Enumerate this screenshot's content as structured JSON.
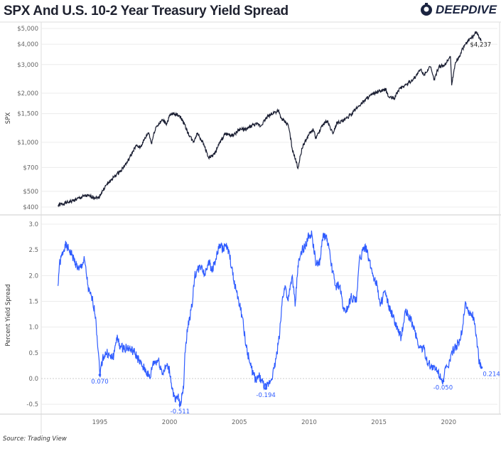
{
  "title": "SPX And U.S. 10-2 Year Treasury Yield Spread",
  "logo": "DEEPDIVE",
  "source": "Source: Trading View",
  "colors": {
    "spx": "#1b1f33",
    "spread": "#2f5cff",
    "grid": "#ececec",
    "axis_text": "#666666"
  },
  "chart_data": [
    {
      "type": "line",
      "ylabel": "SPX",
      "yscale": "log",
      "ylim": [
        380,
        5200
      ],
      "yticks": [
        5000,
        4000,
        3000,
        2000,
        1500,
        1000,
        700,
        500,
        400
      ],
      "ytick_labels": [
        "$5,000",
        "$4,000",
        "$3,000",
        "$2,000",
        "$1,500",
        "$1,000",
        "$700",
        "$500",
        "$400"
      ],
      "grid": true,
      "end_label": "$4,237",
      "x": [
        1992.0,
        1993,
        1994,
        1994.9,
        1995.5,
        1996,
        1996.5,
        1997,
        1997.6,
        1997.9,
        1998.5,
        1998.7,
        1999,
        1999.5,
        1999.8,
        2000.0,
        2000.3,
        2000.7,
        2001.0,
        2001.3,
        2001.7,
        2002.0,
        2002.5,
        2002.8,
        2003.2,
        2003.6,
        2004.0,
        2004.6,
        2005,
        2005.5,
        2006,
        2006.4,
        2006.5,
        2007,
        2007.5,
        2007.8,
        2008.0,
        2008.5,
        2008.8,
        2009.2,
        2009.5,
        2010,
        2010.3,
        2010.5,
        2011,
        2011.3,
        2011.7,
        2012,
        2012.5,
        2013,
        2013.5,
        2014,
        2014.5,
        2015,
        2015.5,
        2015.7,
        2016.1,
        2016.5,
        2017,
        2017.5,
        2018.0,
        2018.2,
        2018.7,
        2018.95,
        2019.3,
        2019.7,
        2020.0,
        2020.13,
        2020.22,
        2020.5,
        2020.8,
        2021.0,
        2021.5,
        2021.8,
        2022.0,
        2022.2,
        2022.35
      ],
      "y": [
        410,
        435,
        470,
        455,
        550,
        610,
        670,
        760,
        950,
        930,
        1150,
        980,
        1230,
        1370,
        1300,
        1450,
        1500,
        1460,
        1330,
        1150,
        1000,
        1140,
        950,
        800,
        840,
        990,
        1130,
        1100,
        1200,
        1200,
        1280,
        1290,
        1250,
        1430,
        1530,
        1550,
        1400,
        1280,
        900,
        690,
        920,
        1120,
        1200,
        1050,
        1290,
        1350,
        1130,
        1320,
        1360,
        1480,
        1650,
        1820,
        1960,
        2050,
        2100,
        1900,
        1860,
        2150,
        2270,
        2450,
        2800,
        2600,
        2900,
        2400,
        2900,
        2980,
        3250,
        3380,
        2240,
        3100,
        3400,
        3750,
        4300,
        4500,
        4790,
        4400,
        4237
      ]
    },
    {
      "type": "line",
      "ylabel": "Percent Yield Spread",
      "ylim": [
        -0.6,
        3.0
      ],
      "yticks": [
        3.0,
        2.5,
        2.0,
        1.5,
        1.0,
        0.5,
        0.0,
        -0.5
      ],
      "ytick_labels": [
        "3.0",
        "2.5",
        "2.0",
        "1.5",
        "1.0",
        "0.5",
        "0.0",
        "-0.5"
      ],
      "xticks": [
        1995,
        2000,
        2005,
        2010,
        2015,
        2020
      ],
      "xtick_labels": [
        "1995",
        "2000",
        "2005",
        "2010",
        "2015",
        "2020"
      ],
      "xlim": [
        1990.8,
        2023.5
      ],
      "grid": true,
      "annotations": [
        {
          "x": 1995.0,
          "y": 0.07,
          "label": "0.070"
        },
        {
          "x": 2000.75,
          "y": -0.511,
          "label": "-0.511"
        },
        {
          "x": 2006.9,
          "y": -0.194,
          "label": "-0.194"
        },
        {
          "x": 2019.6,
          "y": -0.05,
          "label": "-0.050"
        },
        {
          "x": 2022.35,
          "y": 0.214,
          "label": "0.214"
        }
      ],
      "x": [
        1992.0,
        1992.1,
        1992.5,
        1992.8,
        1993,
        1993.5,
        1993.9,
        1994.2,
        1994.5,
        1994.7,
        1994.9,
        1995.0,
        1995.2,
        1995.5,
        1995.8,
        1996.0,
        1996.2,
        1996.5,
        1997.0,
        1997.5,
        1997.8,
        1998.0,
        1998.3,
        1998.6,
        1998.8,
        1999.2,
        1999.5,
        1999.8,
        2000.0,
        2000.2,
        2000.4,
        2000.6,
        2000.75,
        2000.9,
        2001.0,
        2001.1,
        2001.3,
        2001.6,
        2001.8,
        2002.0,
        2002.3,
        2002.5,
        2002.8,
        2003.0,
        2003.3,
        2003.6,
        2003.8,
        2004.0,
        2004.3,
        2004.6,
        2004.9,
        2005.2,
        2005.5,
        2005.8,
        2006.0,
        2006.2,
        2006.4,
        2006.6,
        2006.9,
        2007.1,
        2007.3,
        2007.5,
        2007.7,
        2007.9,
        2008.1,
        2008.3,
        2008.5,
        2008.8,
        2009.0,
        2009.2,
        2009.5,
        2009.8,
        2010.0,
        2010.2,
        2010.5,
        2010.8,
        2011.0,
        2011.3,
        2011.6,
        2011.9,
        2012.2,
        2012.5,
        2012.8,
        2013.0,
        2013.4,
        2013.6,
        2013.9,
        2014.0,
        2014.3,
        2014.6,
        2014.9,
        2015.1,
        2015.4,
        2015.7,
        2016.0,
        2016.4,
        2016.6,
        2016.9,
        2017.2,
        2017.5,
        2017.9,
        2018.2,
        2018.5,
        2018.9,
        2019.2,
        2019.5,
        2019.6,
        2019.8,
        2020.0,
        2020.2,
        2020.5,
        2020.8,
        2021.0,
        2021.2,
        2021.4,
        2021.8,
        2022.0,
        2022.2,
        2022.35
      ],
      "y": [
        1.8,
        2.2,
        2.6,
        2.5,
        2.4,
        2.1,
        2.3,
        1.7,
        1.5,
        1.2,
        0.5,
        0.07,
        0.4,
        0.5,
        0.4,
        0.45,
        0.8,
        0.6,
        0.6,
        0.5,
        0.35,
        0.25,
        0.15,
        0.0,
        0.3,
        0.35,
        0.1,
        0.25,
        0.15,
        -0.2,
        -0.45,
        -0.35,
        -0.511,
        -0.3,
        -0.2,
        0.5,
        1.0,
        1.4,
        2.0,
        2.1,
        2.2,
        2.0,
        2.3,
        2.1,
        2.3,
        2.6,
        2.5,
        2.6,
        2.4,
        1.9,
        1.6,
        1.2,
        0.6,
        0.25,
        0.1,
        -0.05,
        0.05,
        -0.05,
        -0.194,
        -0.1,
        0.0,
        0.2,
        0.5,
        0.9,
        1.6,
        1.8,
        1.5,
        2.0,
        1.4,
        2.2,
        2.5,
        2.6,
        2.8,
        2.8,
        2.2,
        2.3,
        2.8,
        2.7,
        2.2,
        1.8,
        1.8,
        1.3,
        1.4,
        1.6,
        1.5,
        2.3,
        2.5,
        2.6,
        2.3,
        2.0,
        1.8,
        1.4,
        1.7,
        1.4,
        1.2,
        0.9,
        0.8,
        1.3,
        1.2,
        1.0,
        0.6,
        0.6,
        0.3,
        0.2,
        0.15,
        0.0,
        -0.05,
        0.2,
        0.2,
        0.5,
        0.6,
        0.75,
        1.0,
        1.5,
        1.3,
        1.2,
        0.8,
        0.3,
        0.214
      ]
    }
  ]
}
